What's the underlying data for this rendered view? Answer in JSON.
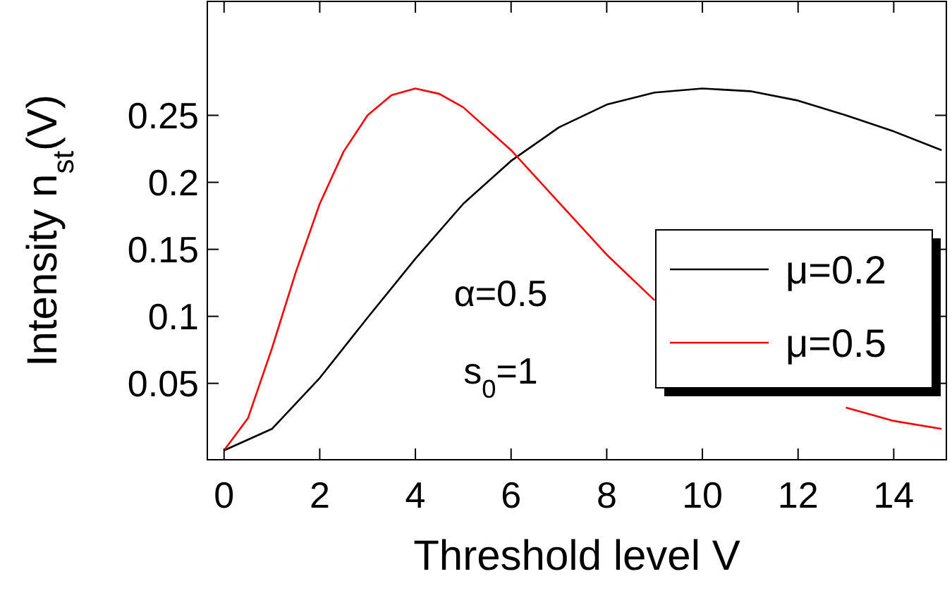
{
  "chart_data": {
    "type": "line",
    "xlabel": "Threshold  level V",
    "ylabel": "Intensity n$_{st}$(V)",
    "xlim": [
      -0.35,
      15.1
    ],
    "ylim": [
      -0.007,
      0.335
    ],
    "xticks": [
      0,
      2,
      4,
      6,
      8,
      10,
      12,
      14
    ],
    "yticks": [
      0.05,
      0.1,
      0.15,
      0.2,
      0.25
    ],
    "grid": false,
    "legend": "right",
    "marker": "none",
    "line_style": "solid",
    "annotations": [
      "α=0.5",
      "s$_{0}$=1"
    ],
    "series": [
      {
        "name": "μ=0.2",
        "color": "#000000",
        "x": [
          0,
          1,
          2,
          3,
          4,
          5,
          6,
          7,
          8,
          9,
          10,
          11,
          12,
          13,
          14,
          15
        ],
        "values": [
          0,
          0.016,
          0.054,
          0.099,
          0.143,
          0.184,
          0.216,
          0.241,
          0.258,
          0.267,
          0.27,
          0.268,
          0.261,
          0.25,
          0.238,
          0.224
        ]
      },
      {
        "name": "μ=0.5",
        "color": "#ff0000",
        "x": [
          0,
          0.5,
          1,
          1.5,
          2,
          2.5,
          3,
          3.5,
          4,
          4.5,
          5,
          6,
          7,
          8,
          9,
          10,
          11,
          12,
          13,
          14,
          15
        ],
        "values": [
          0,
          0.024,
          0.076,
          0.133,
          0.184,
          0.223,
          0.25,
          0.265,
          0.27,
          0.266,
          0.256,
          0.224,
          0.185,
          0.146,
          0.112,
          null,
          null,
          null,
          0.032,
          0.022,
          0.016
        ]
      }
    ]
  }
}
